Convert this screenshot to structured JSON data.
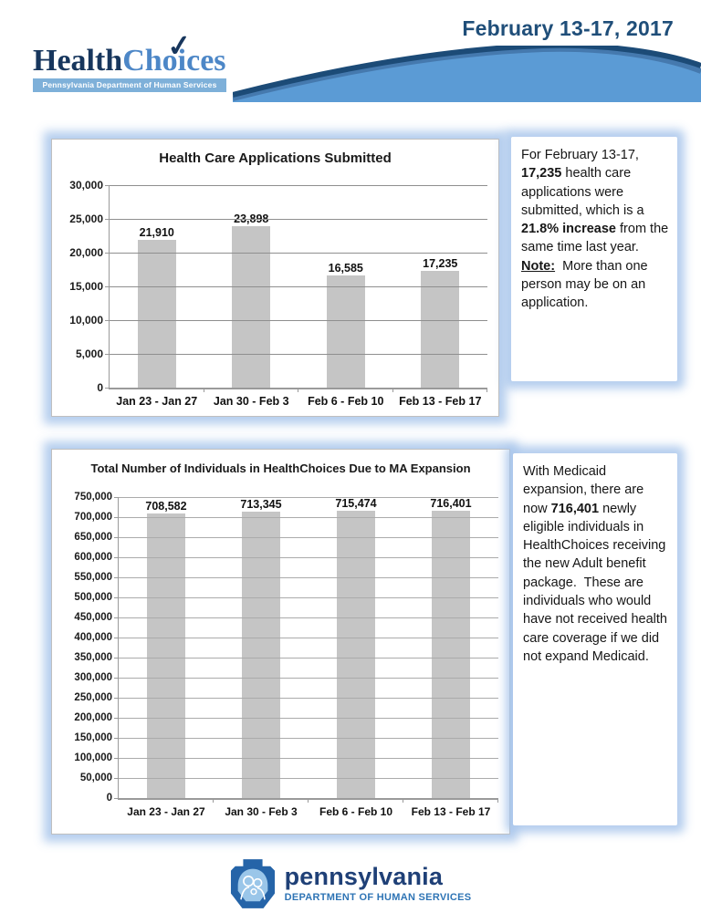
{
  "page": {
    "date_title": "February 13-17, 2017"
  },
  "header_logo": {
    "word_1": "Health",
    "word_2": "Choices",
    "checkmark": "✓",
    "tagline": "Pennsylvania Department of Human Services"
  },
  "colors": {
    "header_navy": "#1F4E79",
    "logo_dark": "#17365D",
    "logo_medium_blue": "#4D87C7",
    "logo_band_blue": "#7EB0D9",
    "swoosh_dark": "#1C4B77",
    "swoosh_mid": "#4579AE",
    "swoosh_light": "#5B9BD5",
    "panel_glow": "#A8C5EB",
    "bar_gray": "#C5C5C5"
  },
  "chart_data": [
    {
      "type": "bar",
      "title": "Health Care Applications Submitted",
      "categories": [
        "Jan 23 - Jan 27",
        "Jan 30 - Feb 3",
        "Feb 6 - Feb 10",
        "Feb 13 - Feb 17"
      ],
      "values": [
        21910,
        23898,
        16585,
        17235
      ],
      "value_labels": [
        "21,910",
        "23,898",
        "16,585",
        "17,235"
      ],
      "xlabel": "",
      "ylabel": "",
      "ylim": [
        0,
        30000
      ],
      "ytick_step": 5000,
      "ytick_labels": [
        "30,000",
        "25,000",
        "20,000",
        "15,000",
        "10,000",
        "5,000",
        "0"
      ],
      "grid": true,
      "legend": "none",
      "bar_color": "#C5C5C5",
      "grid_color": "#8f8f8f",
      "axis_color": "#9a9a9a"
    },
    {
      "type": "bar",
      "title": "Total Number of Individuals in HealthChoices Due to MA Expansion",
      "categories": [
        "Jan 23 - Jan 27",
        "Jan 30 - Feb 3",
        "Feb 6 - Feb 10",
        "Feb 13 - Feb 17"
      ],
      "values": [
        708582,
        713345,
        715474,
        716401
      ],
      "value_labels": [
        "708,582",
        "713,345",
        "715,474",
        "716,401"
      ],
      "xlabel": "",
      "ylabel": "",
      "ylim": [
        0,
        750000
      ],
      "ytick_step": 50000,
      "ytick_labels": [
        "750,000",
        "700,000",
        "650,000",
        "600,000",
        "550,000",
        "500,000",
        "450,000",
        "400,000",
        "350,000",
        "300,000",
        "250,000",
        "200,000",
        "150,000",
        "100,000",
        "50,000",
        "0"
      ],
      "grid": true,
      "legend": "none",
      "bar_color": "#C5C5C5",
      "grid_color": "#ABABAB",
      "axis_color": "#9a9a9a"
    }
  ],
  "sidebars": [
    {
      "paragraphs": [
        {
          "runs": [
            {
              "t": "For February 13-17, "
            },
            {
              "t": "17,235",
              "b": true
            },
            {
              "t": " health care applications were submitted, which is a "
            },
            {
              "t": "21.8% increase",
              "b": true
            },
            {
              "t": " from the same time last year."
            }
          ]
        },
        {
          "runs": [
            {
              "t": "Note:",
              "b": true,
              "u": true
            },
            {
              "t": "  More than one person may be on an application."
            }
          ]
        }
      ]
    },
    {
      "paragraphs": [
        {
          "runs": [
            {
              "t": "With Medicaid expansion, there are now "
            },
            {
              "t": "716,401",
              "b": true
            },
            {
              "t": " newly eligible individuals in HealthChoices receiving the new Adult benefit package.  These are individuals who would have not received health care coverage if we did not expand Medicaid."
            }
          ]
        }
      ]
    }
  ],
  "footer_logo": {
    "wordmark": "pennsylvania",
    "subtitle": "DEPARTMENT OF HUMAN SERVICES"
  }
}
